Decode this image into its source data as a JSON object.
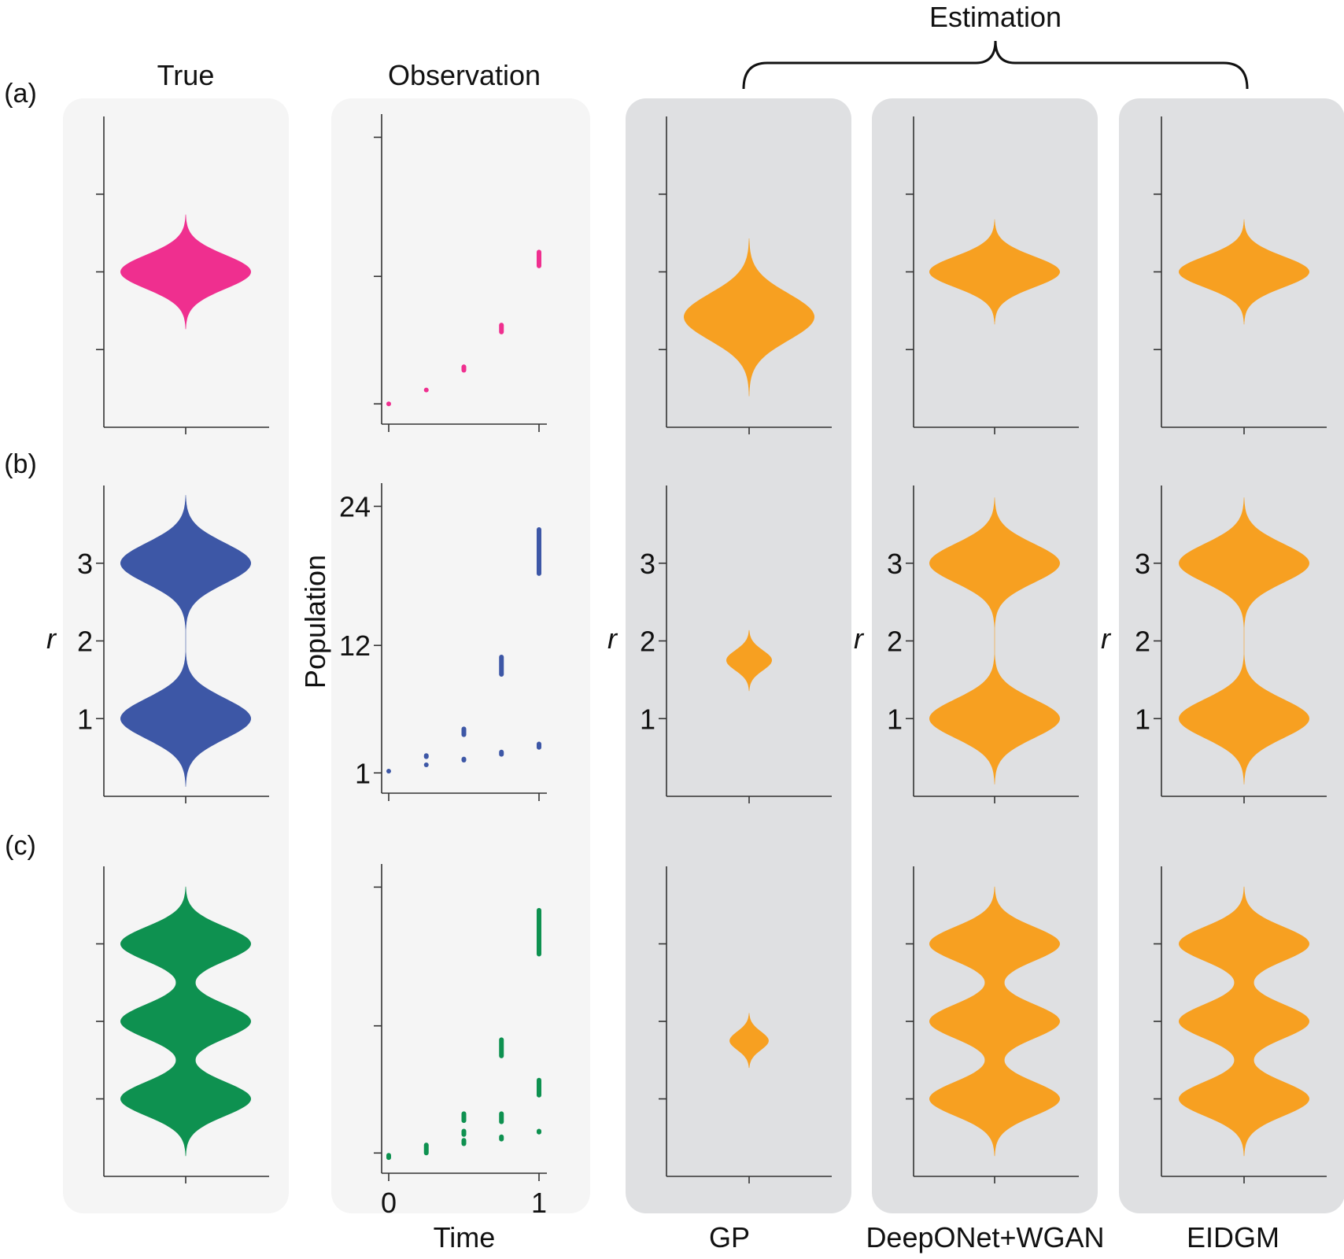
{
  "figure": {
    "group_label": "Estimation",
    "columns": [
      "True",
      "Observation",
      "GP",
      "DeepONet+WGAN",
      "EIDGM"
    ],
    "row_labels": [
      "(a)",
      "(b)",
      "(c)"
    ],
    "colors": {
      "true_a": "#ef2f8f",
      "true_b": "#3d57a6",
      "true_c": "#0e9150",
      "estimate": "#f7a021",
      "panel_light": "#f5f5f5",
      "panel_gray": "#dfe0e2",
      "axis": "#333333"
    }
  },
  "chart_data": {
    "type": "violin",
    "r_axis": {
      "label": "r",
      "range": [
        0,
        4
      ],
      "ticks": [
        1,
        2,
        3
      ],
      "tick_labels": [
        "1",
        "2",
        "3"
      ]
    },
    "observation_axes": {
      "xlabel": "Time",
      "ylabel": "Population",
      "x_ticks": [
        0,
        1
      ],
      "x_tick_labels": [
        "0",
        "1"
      ],
      "y_ticks": [
        1,
        12,
        24
      ],
      "y_tick_labels": [
        "1",
        "12",
        "24"
      ],
      "y_range": [
        0,
        26
      ]
    },
    "rows": [
      {
        "label": "(a)",
        "true_modes": [
          {
            "r": 2.0,
            "weight": 1.0,
            "width": 0.22
          }
        ],
        "observation": [
          {
            "t": 0.0,
            "min": 1.0,
            "max": 1.0
          },
          {
            "t": 0.25,
            "min": 2.0,
            "max": 2.4
          },
          {
            "t": 0.5,
            "min": 3.7,
            "max": 4.4
          },
          {
            "t": 0.75,
            "min": 7.0,
            "max": 8.0
          },
          {
            "t": 1.0,
            "min": 12.7,
            "max": 14.3
          }
        ],
        "estimates": {
          "GP": [
            {
              "r": 1.42,
              "weight": 1.0,
              "width": 0.3
            }
          ],
          "DeepONet+WGAN": [
            {
              "r": 2.0,
              "weight": 1.0,
              "width": 0.2
            }
          ],
          "EIDGM": [
            {
              "r": 2.0,
              "weight": 1.0,
              "width": 0.2
            }
          ]
        }
      },
      {
        "label": "(b)",
        "true_modes": [
          {
            "r": 1.0,
            "weight": 1.0,
            "width": 0.26
          },
          {
            "r": 3.0,
            "weight": 1.0,
            "width": 0.26
          }
        ],
        "observation": [
          {
            "t": 0.0,
            "min": 1.0,
            "max": 1.3
          },
          {
            "t": 0.25,
            "min": 1.5,
            "max": 1.9
          },
          {
            "t": 0.25,
            "min": 2.2,
            "max": 2.7
          },
          {
            "t": 0.5,
            "min": 1.9,
            "max": 2.4
          },
          {
            "t": 0.5,
            "min": 4.1,
            "max": 5.0
          },
          {
            "t": 0.75,
            "min": 2.4,
            "max": 3.0
          },
          {
            "t": 0.75,
            "min": 9.3,
            "max": 11.2
          },
          {
            "t": 1.0,
            "min": 3.0,
            "max": 3.7
          },
          {
            "t": 1.0,
            "min": 18.0,
            "max": 22.2
          }
        ],
        "estimates": {
          "GP": [
            {
              "r": 1.75,
              "weight": 0.35,
              "width": 0.13
            }
          ],
          "DeepONet+WGAN": [
            {
              "r": 1.0,
              "weight": 1.0,
              "width": 0.25
            },
            {
              "r": 3.0,
              "weight": 1.0,
              "width": 0.25
            }
          ],
          "EIDGM": [
            {
              "r": 1.0,
              "weight": 1.0,
              "width": 0.25
            },
            {
              "r": 3.0,
              "weight": 1.0,
              "width": 0.25
            }
          ]
        }
      },
      {
        "label": "(c)",
        "true_modes": [
          {
            "r": 1.0,
            "weight": 1.0,
            "width": 0.22
          },
          {
            "r": 2.0,
            "weight": 1.0,
            "width": 0.22
          },
          {
            "r": 3.0,
            "weight": 1.0,
            "width": 0.22
          }
        ],
        "observation": [
          {
            "t": 0.0,
            "min": 0.4,
            "max": 1.0
          },
          {
            "t": 0.25,
            "min": 0.8,
            "max": 1.9
          },
          {
            "t": 0.5,
            "min": 1.6,
            "max": 2.3
          },
          {
            "t": 0.5,
            "min": 2.4,
            "max": 3.1
          },
          {
            "t": 0.5,
            "min": 3.6,
            "max": 4.6
          },
          {
            "t": 0.75,
            "min": 2.0,
            "max": 2.6
          },
          {
            "t": 0.75,
            "min": 3.5,
            "max": 4.6
          },
          {
            "t": 0.75,
            "min": 9.2,
            "max": 11.0
          },
          {
            "t": 1.0,
            "min": 2.6,
            "max": 3.1
          },
          {
            "t": 1.0,
            "min": 5.8,
            "max": 7.5
          },
          {
            "t": 1.0,
            "min": 18.0,
            "max": 22.2
          }
        ],
        "estimates": {
          "GP": [
            {
              "r": 1.75,
              "weight": 0.3,
              "width": 0.12
            }
          ],
          "DeepONet+WGAN": [
            {
              "r": 1.0,
              "weight": 1.0,
              "width": 0.22
            },
            {
              "r": 2.0,
              "weight": 1.0,
              "width": 0.22
            },
            {
              "r": 3.0,
              "weight": 1.0,
              "width": 0.22
            }
          ],
          "EIDGM": [
            {
              "r": 1.0,
              "weight": 1.0,
              "width": 0.22
            },
            {
              "r": 2.0,
              "weight": 1.0,
              "width": 0.22
            },
            {
              "r": 3.0,
              "weight": 1.0,
              "width": 0.22
            }
          ]
        }
      }
    ]
  }
}
